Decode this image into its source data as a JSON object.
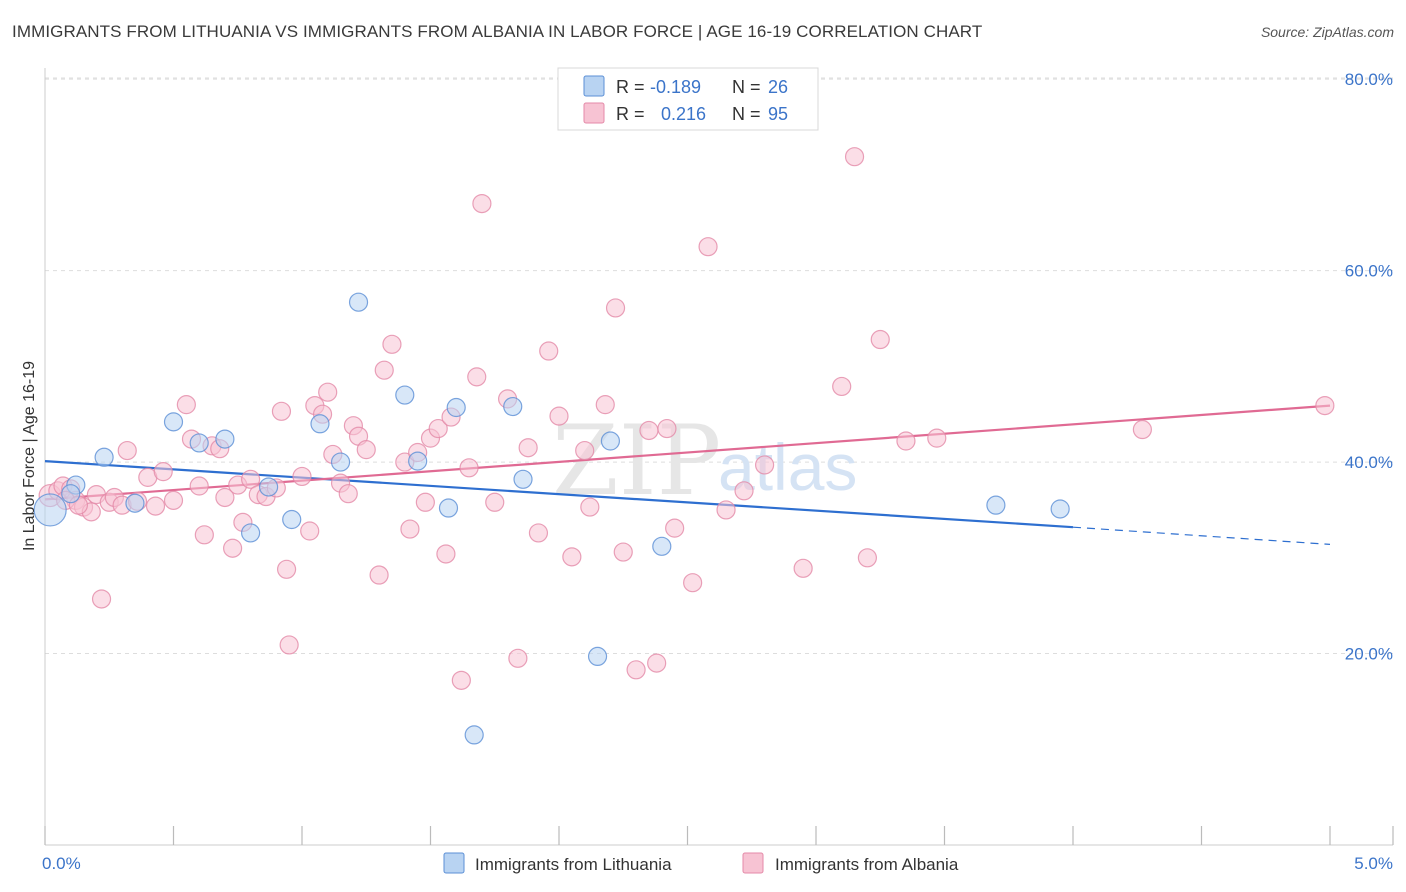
{
  "header": {
    "title": "IMMIGRANTS FROM LITHUANIA VS IMMIGRANTS FROM ALBANIA IN LABOR FORCE | AGE 16-19 CORRELATION CHART",
    "source": "Source: ZipAtlas.com"
  },
  "watermark": {
    "zip": "ZIP",
    "atlas": "atlas"
  },
  "legend_top": [
    {
      "r_label": "R =",
      "r_value": "-0.189",
      "n_label": "N =",
      "n_value": "26"
    },
    {
      "r_label": "R =",
      "r_value": "0.216",
      "n_label": "N =",
      "n_value": "95"
    }
  ],
  "colors": {
    "lithuania_fill": "#b8d3f2",
    "lithuania_stroke": "#5b8fd6",
    "lithuania_line": "#2e6fd0",
    "albania_fill": "#f7c3d3",
    "albania_stroke": "#e48aa8",
    "albania_line": "#e06a93",
    "tick_text": "#3b74c9",
    "grid": "#dddddd"
  },
  "chart_data": {
    "type": "scatter",
    "title": "IMMIGRANTS FROM LITHUANIA VS IMMIGRANTS FROM ALBANIA IN LABOR FORCE | AGE 16-19 CORRELATION CHART",
    "xlabel": "",
    "ylabel": "In Labor Force | Age 16-19",
    "xlim": [
      0,
      5
    ],
    "ylim": [
      0,
      82
    ],
    "x_tick_labels": [
      "0.0%",
      "5.0%"
    ],
    "y_ticks": [
      20,
      40,
      60,
      80
    ],
    "y_tick_labels": [
      "20.0%",
      "40.0%",
      "60.0%",
      "80.0%"
    ],
    "grid": true,
    "legend_position": "top-center",
    "series": [
      {
        "name": "Immigrants from Lithuania",
        "r": -0.189,
        "n": 26,
        "trend": {
          "x0": 0,
          "y0": 40.1,
          "x1": 4.0,
          "y1": 33.2,
          "dashed_to_x": 5.0,
          "dashed_to_y": 31.4
        },
        "points": [
          [
            0.02,
            35.0,
            16
          ],
          [
            0.12,
            37.6,
            9
          ],
          [
            0.23,
            40.5,
            9
          ],
          [
            0.35,
            35.7,
            9
          ],
          [
            0.5,
            44.2,
            9
          ],
          [
            0.6,
            42.0,
            9
          ],
          [
            0.7,
            42.4,
            9
          ],
          [
            0.8,
            32.6,
            9
          ],
          [
            0.87,
            37.4,
            9
          ],
          [
            0.96,
            34.0,
            9
          ],
          [
            1.07,
            44.0,
            9
          ],
          [
            1.15,
            40.0,
            9
          ],
          [
            1.22,
            56.7,
            9
          ],
          [
            1.4,
            47.0,
            9
          ],
          [
            1.45,
            40.1,
            9
          ],
          [
            1.57,
            35.2,
            9
          ],
          [
            1.6,
            45.7,
            9
          ],
          [
            1.67,
            11.5,
            9
          ],
          [
            1.82,
            45.8,
            9
          ],
          [
            1.86,
            38.2,
            9
          ],
          [
            2.15,
            19.7,
            9
          ],
          [
            2.2,
            42.2,
            9
          ],
          [
            2.4,
            31.2,
            9
          ],
          [
            3.7,
            35.5,
            9
          ],
          [
            3.95,
            35.1,
            9
          ],
          [
            0.1,
            36.7,
            9
          ]
        ]
      },
      {
        "name": "Immigrants from Albania",
        "r": 0.216,
        "n": 95,
        "trend": {
          "x0": 0,
          "y0": 36.1,
          "x1": 5.0,
          "y1": 45.9
        },
        "points": [
          [
            0.02,
            36.5,
            11
          ],
          [
            0.05,
            37.0,
            9
          ],
          [
            0.07,
            37.5,
            9
          ],
          [
            0.1,
            37.2,
            9
          ],
          [
            0.12,
            36.0,
            9
          ],
          [
            0.15,
            35.3,
            9
          ],
          [
            0.18,
            34.8,
            9
          ],
          [
            0.2,
            36.6,
            9
          ],
          [
            0.25,
            35.8,
            9
          ],
          [
            0.27,
            36.3,
            9
          ],
          [
            0.3,
            35.5,
            9
          ],
          [
            0.32,
            41.2,
            9
          ],
          [
            0.36,
            35.9,
            9
          ],
          [
            0.4,
            38.4,
            9
          ],
          [
            0.43,
            35.4,
            9
          ],
          [
            0.46,
            39.0,
            9
          ],
          [
            0.5,
            36.0,
            9
          ],
          [
            0.55,
            46.0,
            9
          ],
          [
            0.57,
            42.4,
            9
          ],
          [
            0.6,
            37.5,
            9
          ],
          [
            0.62,
            32.4,
            9
          ],
          [
            0.65,
            41.7,
            9
          ],
          [
            0.68,
            41.4,
            9
          ],
          [
            0.7,
            36.3,
            9
          ],
          [
            0.73,
            31.0,
            9
          ],
          [
            0.75,
            37.6,
            9
          ],
          [
            0.77,
            33.7,
            9
          ],
          [
            0.8,
            38.2,
            9
          ],
          [
            0.83,
            36.6,
            9
          ],
          [
            0.86,
            36.4,
            9
          ],
          [
            0.9,
            37.3,
            9
          ],
          [
            0.92,
            45.3,
            9
          ],
          [
            0.94,
            28.8,
            9
          ],
          [
            0.95,
            20.9,
            9
          ],
          [
            1.0,
            38.5,
            9
          ],
          [
            1.03,
            32.8,
            9
          ],
          [
            1.05,
            45.9,
            9
          ],
          [
            1.08,
            45.0,
            9
          ],
          [
            1.1,
            47.3,
            9
          ],
          [
            1.12,
            40.8,
            9
          ],
          [
            1.15,
            37.8,
            9
          ],
          [
            1.18,
            36.7,
            9
          ],
          [
            1.2,
            43.8,
            9
          ],
          [
            1.22,
            42.7,
            9
          ],
          [
            1.25,
            41.3,
            9
          ],
          [
            1.3,
            28.2,
            9
          ],
          [
            1.32,
            49.6,
            9
          ],
          [
            1.35,
            52.3,
            9
          ],
          [
            1.4,
            40.0,
            9
          ],
          [
            1.42,
            33.0,
            9
          ],
          [
            1.45,
            41.0,
            9
          ],
          [
            1.48,
            35.8,
            9
          ],
          [
            1.5,
            42.5,
            9
          ],
          [
            1.53,
            43.5,
            9
          ],
          [
            1.56,
            30.4,
            9
          ],
          [
            1.58,
            44.7,
            9
          ],
          [
            1.62,
            17.2,
            9
          ],
          [
            1.65,
            39.4,
            9
          ],
          [
            1.68,
            48.9,
            9
          ],
          [
            1.7,
            67.0,
            9
          ],
          [
            1.75,
            35.8,
            9
          ],
          [
            1.8,
            46.6,
            9
          ],
          [
            1.84,
            19.5,
            9
          ],
          [
            1.88,
            41.5,
            9
          ],
          [
            1.92,
            32.6,
            9
          ],
          [
            1.96,
            51.6,
            9
          ],
          [
            2.0,
            44.8,
            9
          ],
          [
            2.05,
            30.1,
            9
          ],
          [
            2.1,
            41.2,
            9
          ],
          [
            2.12,
            35.3,
            9
          ],
          [
            2.18,
            46.0,
            9
          ],
          [
            2.22,
            56.1,
            9
          ],
          [
            2.25,
            30.6,
            9
          ],
          [
            2.3,
            18.3,
            9
          ],
          [
            2.35,
            43.3,
            9
          ],
          [
            2.38,
            19.0,
            9
          ],
          [
            2.42,
            43.5,
            9
          ],
          [
            2.45,
            33.1,
            9
          ],
          [
            2.52,
            27.4,
            9
          ],
          [
            2.58,
            62.5,
            9
          ],
          [
            2.65,
            35.0,
            9
          ],
          [
            2.72,
            37.0,
            9
          ],
          [
            2.8,
            39.7,
            9
          ],
          [
            2.95,
            28.9,
            9
          ],
          [
            3.1,
            47.9,
            9
          ],
          [
            3.15,
            71.9,
            9
          ],
          [
            3.2,
            30.0,
            9
          ],
          [
            3.25,
            52.8,
            9
          ],
          [
            3.35,
            42.2,
            9
          ],
          [
            3.47,
            42.5,
            9
          ],
          [
            4.27,
            43.4,
            9
          ],
          [
            4.98,
            45.9,
            9
          ],
          [
            0.08,
            36.0,
            9
          ],
          [
            0.13,
            35.5,
            9
          ],
          [
            0.22,
            25.7,
            9
          ]
        ]
      }
    ]
  }
}
